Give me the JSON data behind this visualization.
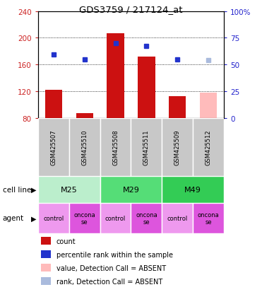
{
  "title": "GDS3759 / 217124_at",
  "samples": [
    "GSM425507",
    "GSM425510",
    "GSM425508",
    "GSM425511",
    "GSM425509",
    "GSM425512"
  ],
  "bar_values": [
    122,
    87,
    207,
    172,
    112,
    118
  ],
  "bar_colors": [
    "#cc1111",
    "#cc1111",
    "#cc1111",
    "#cc1111",
    "#cc1111",
    "#ffbbbb"
  ],
  "rank_values": [
    175,
    168,
    192,
    188,
    168,
    167
  ],
  "rank_colors": [
    "#2233cc",
    "#2233cc",
    "#2233cc",
    "#2233cc",
    "#2233cc",
    "#aabbdd"
  ],
  "bar_bottom": 80,
  "ymin": 80,
  "ymax": 240,
  "yticks_left": [
    80,
    120,
    160,
    200,
    240
  ],
  "yticks_right": [
    0,
    25,
    50,
    75,
    100
  ],
  "right_axis_labels": [
    "0",
    "25",
    "50",
    "75",
    "100%"
  ],
  "cell_line_colors": [
    "#bbeecc",
    "#55dd77",
    "#33cc55"
  ],
  "cell_line_labels": [
    "M25",
    "M29",
    "M49"
  ],
  "agent_labels": [
    "control",
    "oncona\nse",
    "control",
    "oncona\nse",
    "control",
    "oncona\nse"
  ],
  "agent_colors": [
    "#ee99ee",
    "#dd55dd",
    "#ee99ee",
    "#dd55dd",
    "#ee99ee",
    "#dd55dd"
  ],
  "legend_items": [
    {
      "color": "#cc1111",
      "label": "count"
    },
    {
      "color": "#2233cc",
      "label": "percentile rank within the sample"
    },
    {
      "color": "#ffbbbb",
      "label": "value, Detection Call = ABSENT"
    },
    {
      "color": "#aabbdd",
      "label": "rank, Detection Call = ABSENT"
    }
  ],
  "fig_width": 3.71,
  "fig_height": 4.14,
  "dpi": 100
}
